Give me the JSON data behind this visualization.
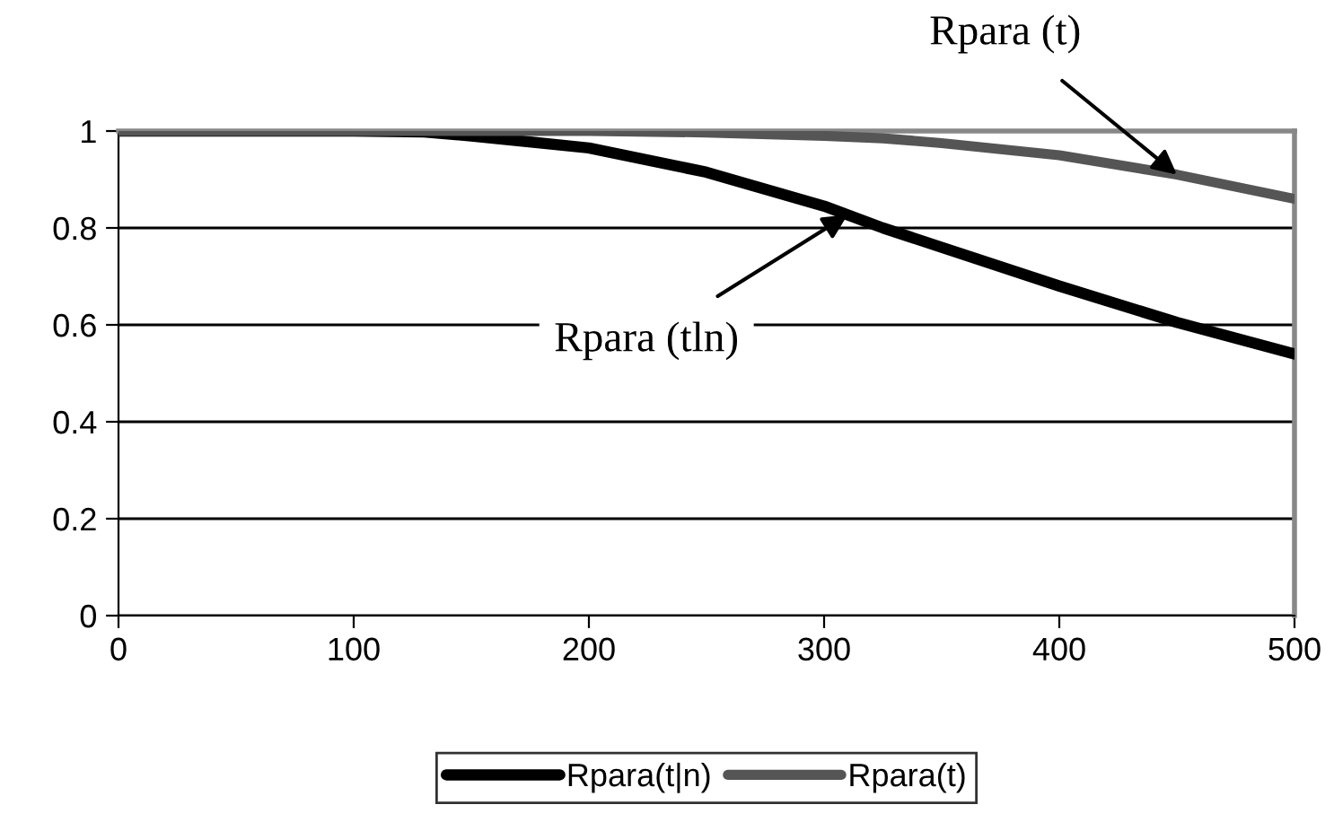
{
  "chart_data": {
    "type": "line",
    "x": [
      0,
      50,
      100,
      130,
      150,
      200,
      250,
      300,
      325,
      350,
      400,
      450,
      500
    ],
    "series": [
      {
        "name": "Rpara(t|n)",
        "color": "#000000",
        "values": [
          1,
          1,
          1,
          0.998,
          0.99,
          0.965,
          0.915,
          0.845,
          0.8,
          0.76,
          0.68,
          0.605,
          0.54
        ]
      },
      {
        "name": "Rpara(t)",
        "color": "#555555",
        "values": [
          1,
          1,
          1,
          1,
          1,
          1,
          0.997,
          0.99,
          0.985,
          0.975,
          0.95,
          0.91,
          0.86
        ]
      }
    ],
    "xlim": [
      0,
      500
    ],
    "xticks": [
      0,
      100,
      200,
      300,
      400,
      500
    ],
    "ylim": [
      0,
      1
    ],
    "yticks": [
      0,
      0.2,
      0.4,
      0.6,
      0.8,
      1
    ],
    "grid": "y",
    "legend": "bottom",
    "marker": "none",
    "line_style": "solid",
    "annotations": [
      {
        "text": "Rpara (t)",
        "x": 450,
        "y": 0.91
      },
      {
        "text": "Rpara (tln)",
        "x": 310,
        "y": 0.827
      }
    ]
  }
}
